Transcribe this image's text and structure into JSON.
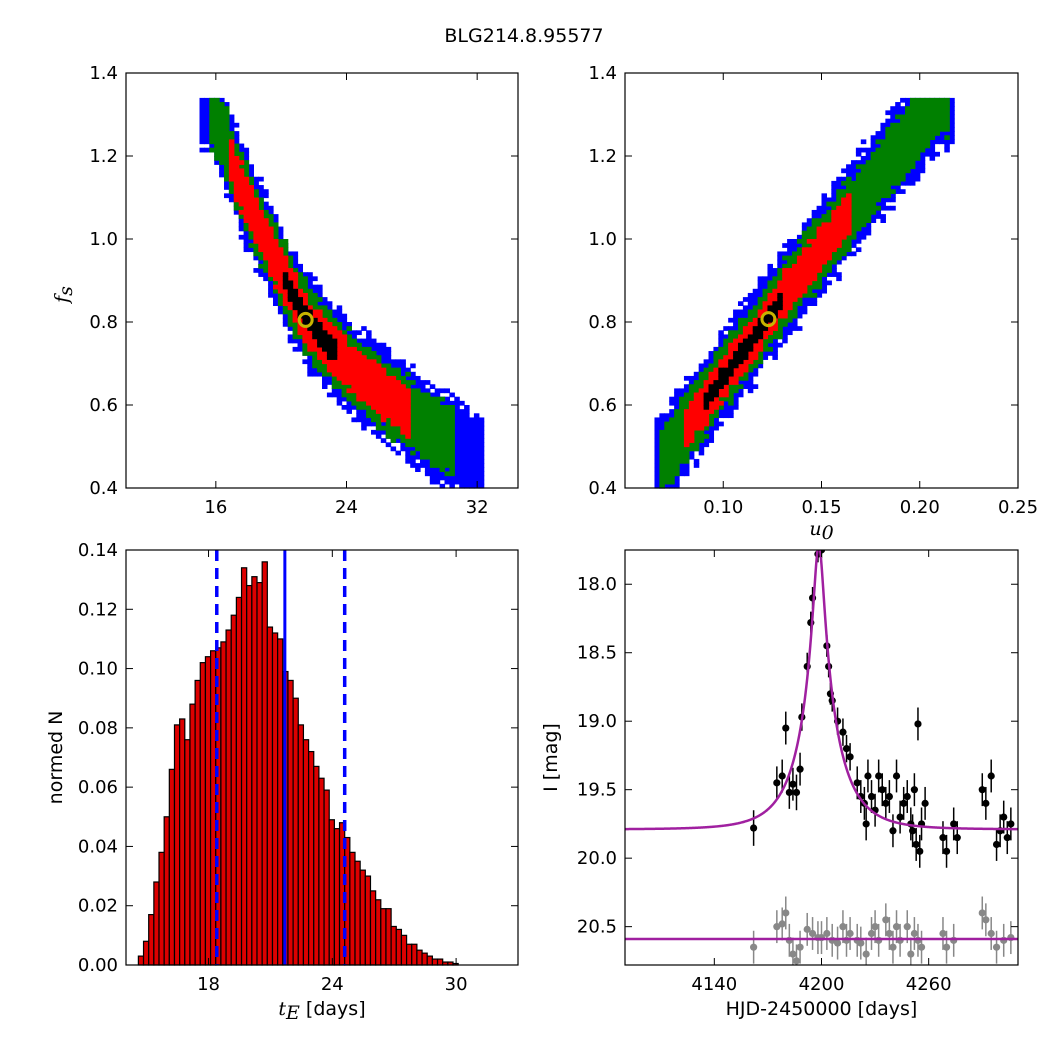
{
  "figure": {
    "title": "BLG214.8.95577"
  },
  "colors": {
    "sigma1": "#000000",
    "sigma2": "#ff0000",
    "sigma3": "#008000",
    "sigma4": "#0000ff",
    "best_fit_marker": "#c8b400",
    "hist_fill": "#dd0000",
    "median_line": "#0000ff",
    "model_curve": "#a020a0",
    "lc_primary": "#000000",
    "lc_secondary": "#888888"
  },
  "chart_data": [
    {
      "id": "tE_fs",
      "type": "heatmap",
      "xlabel": "",
      "ylabel": "f_s",
      "xlim": [
        10.5,
        34.5
      ],
      "ylim": [
        0.4,
        1.4
      ],
      "x_ticks": [
        16,
        24,
        32
      ],
      "x_tick_labels": [
        "16",
        "24",
        "32"
      ],
      "y_ticks": [
        0.4,
        0.6,
        0.8,
        1.0,
        1.2,
        1.4
      ],
      "y_tick_labels": [
        "0.4",
        "0.6",
        "0.8",
        "1.0",
        "1.2",
        "1.4"
      ],
      "ridge": [
        [
          15.5,
          1.33
        ],
        [
          16.5,
          1.24
        ],
        [
          17.5,
          1.13
        ],
        [
          18.5,
          1.04
        ],
        [
          19.5,
          0.96
        ],
        [
          20.5,
          0.88
        ],
        [
          21.5,
          0.81
        ],
        [
          22.5,
          0.76
        ],
        [
          23.5,
          0.72
        ],
        [
          24.5,
          0.68
        ],
        [
          25.5,
          0.65
        ],
        [
          26.5,
          0.62
        ],
        [
          27.5,
          0.59
        ],
        [
          28.5,
          0.56
        ],
        [
          29.5,
          0.53
        ],
        [
          30.5,
          0.51
        ],
        [
          31.5,
          0.48
        ],
        [
          32.5,
          0.46
        ]
      ],
      "levels": [
        {
          "level": "1sigma",
          "x_range": [
            20.0,
            23.5
          ],
          "half_width": 0.025
        },
        {
          "level": "2sigma",
          "x_range": [
            16.8,
            28.0
          ],
          "half_width": 0.055
        },
        {
          "level": "3sigma",
          "x_range": [
            15.5,
            30.5
          ],
          "half_width": 0.085
        },
        {
          "level": "4sigma",
          "x_range": [
            15.0,
            32.5
          ],
          "half_width": 0.11
        }
      ],
      "best_fit": {
        "x": 21.5,
        "y": 0.805
      }
    },
    {
      "id": "u0_fs",
      "type": "heatmap",
      "xlabel": "u_0",
      "ylabel": "",
      "xlim": [
        0.05,
        0.25
      ],
      "ylim": [
        0.4,
        1.4
      ],
      "x_ticks": [
        0.1,
        0.15,
        0.2,
        0.25
      ],
      "x_tick_labels": [
        "0.10",
        "0.15",
        "0.20",
        "0.25"
      ],
      "y_ticks": [
        0.4,
        0.6,
        0.8,
        1.0,
        1.2,
        1.4
      ],
      "y_tick_labels": [
        "0.4",
        "0.6",
        "0.8",
        "1.0",
        "1.2",
        "1.4"
      ],
      "ridge": [
        [
          0.068,
          0.46
        ],
        [
          0.085,
          0.57
        ],
        [
          0.1,
          0.67
        ],
        [
          0.115,
          0.76
        ],
        [
          0.13,
          0.86
        ],
        [
          0.145,
          0.95
        ],
        [
          0.16,
          1.04
        ],
        [
          0.175,
          1.13
        ],
        [
          0.19,
          1.22
        ],
        [
          0.21,
          1.33
        ]
      ],
      "levels": [
        {
          "level": "1sigma",
          "x_range": [
            0.09,
            0.13
          ],
          "half_width": 0.02
        },
        {
          "level": "2sigma",
          "x_range": [
            0.08,
            0.165
          ],
          "half_width": 0.05
        },
        {
          "level": "3sigma",
          "x_range": [
            0.068,
            0.215
          ],
          "half_width": 0.08
        },
        {
          "level": "4sigma",
          "x_range": [
            0.064,
            0.218
          ],
          "half_width": 0.11
        }
      ],
      "best_fit": {
        "x": 0.123,
        "y": 0.807
      }
    },
    {
      "id": "tE_hist",
      "type": "bar",
      "xlabel": "t_E [days]",
      "ylabel": "normed N",
      "xlim": [
        14.0,
        33.0
      ],
      "ylim": [
        0.0,
        0.14
      ],
      "x_ticks": [
        18,
        24,
        30
      ],
      "x_tick_labels": [
        "18",
        "24",
        "30"
      ],
      "y_ticks": [
        0.0,
        0.02,
        0.04,
        0.06,
        0.08,
        0.1,
        0.12,
        0.14
      ],
      "y_tick_labels": [
        "0.00",
        "0.02",
        "0.04",
        "0.06",
        "0.08",
        "0.10",
        "0.12",
        "0.14"
      ],
      "bin_start": 14.6,
      "bin_width": 0.25,
      "values": [
        0.003,
        0.008,
        0.017,
        0.028,
        0.038,
        0.05,
        0.066,
        0.081,
        0.083,
        0.076,
        0.088,
        0.096,
        0.102,
        0.104,
        0.106,
        0.107,
        0.109,
        0.113,
        0.118,
        0.124,
        0.134,
        0.128,
        0.131,
        0.129,
        0.136,
        0.114,
        0.112,
        0.11,
        0.099,
        0.096,
        0.09,
        0.081,
        0.076,
        0.072,
        0.067,
        0.063,
        0.059,
        0.049,
        0.046,
        0.048,
        0.043,
        0.038,
        0.035,
        0.032,
        0.03,
        0.025,
        0.022,
        0.019,
        0.019,
        0.013,
        0.012,
        0.01,
        0.007,
        0.007,
        0.005,
        0.004,
        0.003,
        0.002,
        0.002,
        0.001,
        0.001,
        0.0005
      ],
      "median": 21.7,
      "bounds": [
        18.4,
        24.6
      ]
    },
    {
      "id": "lightcurve",
      "type": "scatter",
      "xlabel": "HJD-2450000 [days]",
      "ylabel": "I [mag]",
      "xlim": [
        4090.0,
        4310.0
      ],
      "ylim": [
        20.78,
        17.75
      ],
      "x_ticks": [
        4140,
        4200,
        4260
      ],
      "x_tick_labels": [
        "4140",
        "4200",
        "4260"
      ],
      "y_ticks": [
        18.0,
        18.5,
        19.0,
        19.5,
        20.0,
        20.5
      ],
      "y_tick_labels": [
        "18.0",
        "18.5",
        "19.0",
        "19.5",
        "20.0",
        "20.5"
      ],
      "model": {
        "t0": 4198.5,
        "tE": 21.5,
        "u0": 0.123,
        "baseline": 19.79,
        "fs": 0.805
      },
      "baseline2": 20.59,
      "series": [
        {
          "points": [
            [
              4162,
              19.78,
              0.13
            ],
            [
              4175,
              19.45,
              0.12
            ],
            [
              4178,
              19.4,
              0.12
            ],
            [
              4180,
              19.05,
              0.12
            ],
            [
              4182,
              19.52,
              0.12
            ],
            [
              4184,
              19.46,
              0.12
            ],
            [
              4186,
              19.52,
              0.13
            ],
            [
              4188,
              19.35,
              0.12
            ],
            [
              4189,
              18.97,
              0.1
            ],
            [
              4192,
              18.6,
              0.1
            ],
            [
              4194,
              18.28,
              0.08
            ],
            [
              4195,
              18.1,
              0.08
            ],
            [
              4198,
              17.78,
              0.06
            ],
            [
              4200,
              17.75,
              0.06
            ],
            [
              4203,
              18.45,
              0.08
            ],
            [
              4204,
              18.6,
              0.08
            ],
            [
              4205,
              18.8,
              0.08
            ],
            [
              4206,
              18.85,
              0.08
            ],
            [
              4209,
              19.0,
              0.1
            ],
            [
              4212,
              19.08,
              0.1
            ],
            [
              4214,
              19.2,
              0.1
            ],
            [
              4216,
              19.26,
              0.1
            ],
            [
              4220,
              19.45,
              0.12
            ],
            [
              4222,
              19.55,
              0.12
            ],
            [
              4224,
              19.6,
              0.12
            ],
            [
              4225,
              19.75,
              0.12
            ],
            [
              4226,
              19.4,
              0.12
            ],
            [
              4228,
              19.55,
              0.12
            ],
            [
              4230,
              19.65,
              0.12
            ],
            [
              4232,
              19.4,
              0.12
            ],
            [
              4234,
              19.5,
              0.12
            ],
            [
              4236,
              19.6,
              0.12
            ],
            [
              4238,
              19.55,
              0.12
            ],
            [
              4240,
              19.8,
              0.12
            ],
            [
              4242,
              19.4,
              0.12
            ],
            [
              4244,
              19.7,
              0.12
            ],
            [
              4246,
              19.6,
              0.12
            ],
            [
              4248,
              19.55,
              0.12
            ],
            [
              4250,
              19.75,
              0.12
            ],
            [
              4251,
              19.8,
              0.12
            ],
            [
              4252,
              19.5,
              0.12
            ],
            [
              4253,
              19.9,
              0.12
            ],
            [
              4254,
              19.02,
              0.12
            ],
            [
              4255,
              19.95,
              0.12
            ],
            [
              4256,
              19.75,
              0.12
            ],
            [
              4258,
              19.6,
              0.12
            ],
            [
              4268,
              19.85,
              0.12
            ],
            [
              4270,
              19.95,
              0.12
            ],
            [
              4274,
              19.75,
              0.12
            ],
            [
              4276,
              19.85,
              0.12
            ],
            [
              4290,
              19.5,
              0.12
            ],
            [
              4292,
              19.6,
              0.12
            ],
            [
              4295,
              19.4,
              0.12
            ],
            [
              4298,
              19.9,
              0.12
            ],
            [
              4300,
              19.8,
              0.12
            ],
            [
              4302,
              19.7,
              0.12
            ],
            [
              4304,
              19.85,
              0.12
            ],
            [
              4306,
              19.75,
              0.12
            ]
          ]
        },
        {
          "points": [
            [
              4162,
              20.65,
              0.12
            ],
            [
              4175,
              20.5,
              0.12
            ],
            [
              4178,
              20.48,
              0.12
            ],
            [
              4180,
              20.4,
              0.12
            ],
            [
              4182,
              20.6,
              0.12
            ],
            [
              4184,
              20.7,
              0.12
            ],
            [
              4186,
              20.75,
              0.12
            ],
            [
              4188,
              20.65,
              0.12
            ],
            [
              4192,
              20.52,
              0.12
            ],
            [
              4195,
              20.55,
              0.12
            ],
            [
              4198,
              20.58,
              0.12
            ],
            [
              4200,
              20.58,
              0.12
            ],
            [
              4203,
              20.55,
              0.12
            ],
            [
              4206,
              20.6,
              0.12
            ],
            [
              4209,
              20.62,
              0.12
            ],
            [
              4212,
              20.5,
              0.12
            ],
            [
              4214,
              20.6,
              0.12
            ],
            [
              4216,
              20.55,
              0.12
            ],
            [
              4220,
              20.6,
              0.12
            ],
            [
              4222,
              20.62,
              0.12
            ],
            [
              4225,
              20.7,
              0.12
            ],
            [
              4228,
              20.55,
              0.12
            ],
            [
              4230,
              20.5,
              0.12
            ],
            [
              4232,
              20.6,
              0.12
            ],
            [
              4236,
              20.45,
              0.12
            ],
            [
              4238,
              20.55,
              0.12
            ],
            [
              4240,
              20.65,
              0.12
            ],
            [
              4242,
              20.5,
              0.12
            ],
            [
              4244,
              20.6,
              0.12
            ],
            [
              4248,
              20.5,
              0.12
            ],
            [
              4250,
              20.7,
              0.12
            ],
            [
              4252,
              20.55,
              0.12
            ],
            [
              4254,
              20.6,
              0.12
            ],
            [
              4256,
              20.65,
              0.12
            ],
            [
              4268,
              20.55,
              0.12
            ],
            [
              4270,
              20.65,
              0.12
            ],
            [
              4274,
              20.6,
              0.12
            ],
            [
              4290,
              20.4,
              0.12
            ],
            [
              4292,
              20.45,
              0.12
            ],
            [
              4295,
              20.55,
              0.12
            ],
            [
              4298,
              20.65,
              0.12
            ],
            [
              4302,
              20.6,
              0.12
            ],
            [
              4306,
              20.58,
              0.12
            ]
          ]
        }
      ]
    }
  ]
}
